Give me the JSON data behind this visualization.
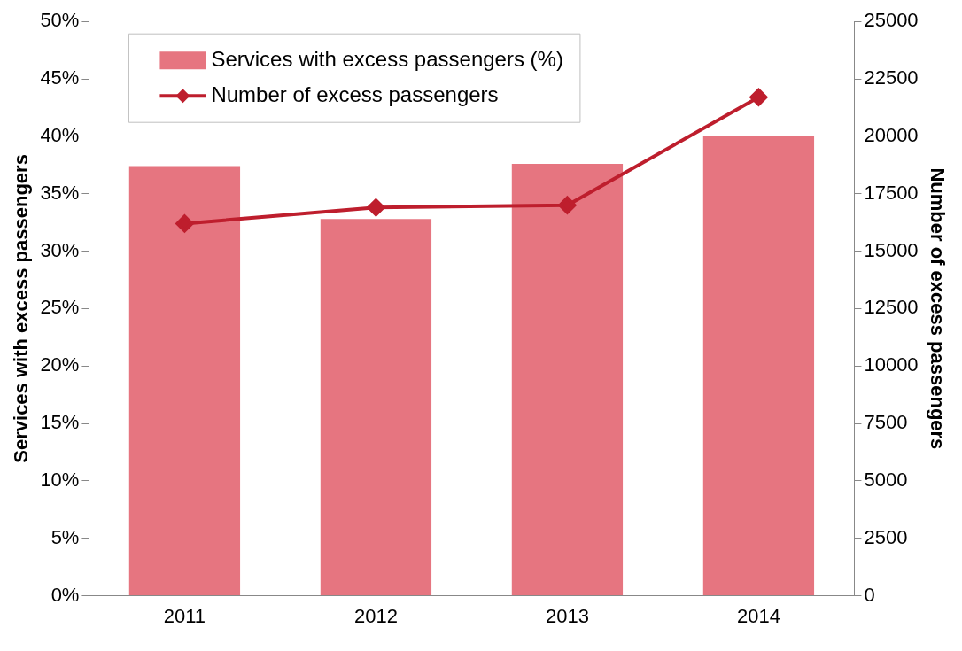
{
  "chart_data": {
    "type": "bar",
    "categories": [
      "2011",
      "2012",
      "2013",
      "2014"
    ],
    "ylabel": "Services with excess passengers",
    "y2label": "Number of excess passengers",
    "series": [
      {
        "name": "Services with excess passengers (%)",
        "color": "#e67580",
        "values": [
          37.4,
          32.8,
          37.6,
          40.0
        ]
      },
      {
        "name": "Number of excess passengers",
        "type": "line",
        "axis": "y2",
        "color": "#be1e2d",
        "marker": "diamond",
        "values": [
          16200,
          16900,
          17000,
          21700
        ]
      }
    ],
    "ylim": [
      0,
      50
    ],
    "yticks": [
      {
        "value": 0,
        "label": "0%"
      },
      {
        "value": 5,
        "label": "5%"
      },
      {
        "value": 10,
        "label": "10%"
      },
      {
        "value": 15,
        "label": "15%"
      },
      {
        "value": 20,
        "label": "20%"
      },
      {
        "value": 25,
        "label": "25%"
      },
      {
        "value": 30,
        "label": "30%"
      },
      {
        "value": 35,
        "label": "35%"
      },
      {
        "value": 40,
        "label": "40%"
      },
      {
        "value": 45,
        "label": "45%"
      },
      {
        "value": 50,
        "label": "50%"
      }
    ],
    "y2lim": [
      0,
      25000
    ],
    "y2ticks": [
      0,
      2500,
      5000,
      7500,
      10000,
      12500,
      15000,
      17500,
      20000,
      22500,
      25000
    ],
    "legend": "top left",
    "grid": false
  }
}
